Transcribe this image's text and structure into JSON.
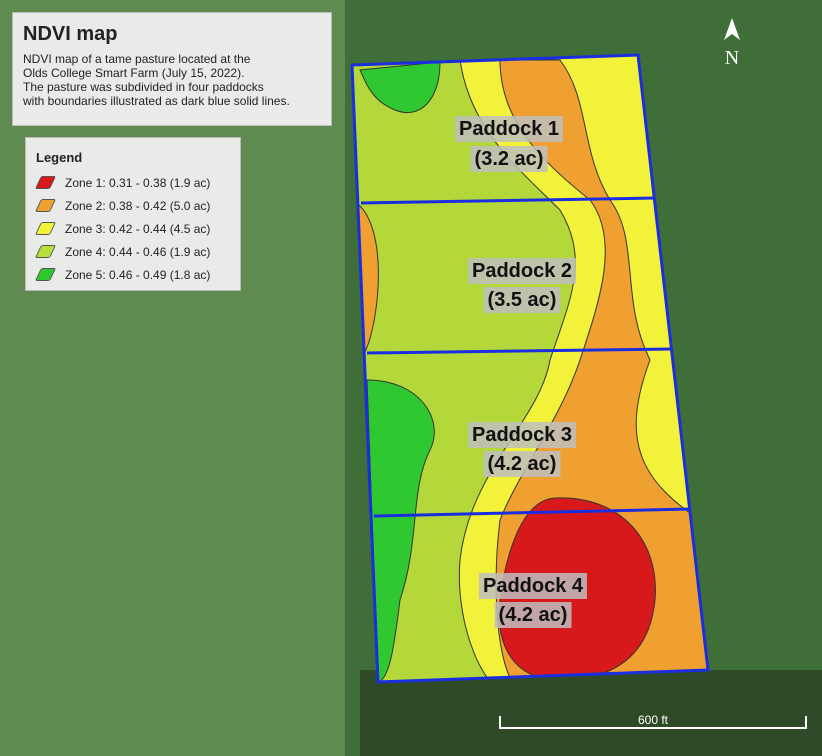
{
  "header": {
    "title": "NDVI map",
    "description": [
      "NDVI map of a tame pasture located at the",
      "Olds College Smart Farm (July 15, 2022).",
      "The pasture was subdivided in four paddocks",
      "with boundaries illustrated as dark blue solid lines."
    ]
  },
  "legend": {
    "title": "Legend",
    "items": [
      {
        "label": "Zone 1: 0.31 - 0.38 (1.9 ac)",
        "color": "#d7191c"
      },
      {
        "label": "Zone 2: 0.38 - 0.42 (5.0 ac)",
        "color": "#f0a030"
      },
      {
        "label": "Zone 3: 0.42 - 0.44 (4.5 ac)",
        "color": "#f2f23a"
      },
      {
        "label": "Zone 4: 0.44 - 0.46 (1.9 ac)",
        "color": "#b4e03a"
      },
      {
        "label": "Zone 5: 0.46 - 0.49 (1.8 ac)",
        "color": "#30c830"
      }
    ]
  },
  "paddocks": [
    {
      "name": "Paddock 1",
      "area": "(3.2 ac)"
    },
    {
      "name": "Paddock 2",
      "area": "(3.5 ac)"
    },
    {
      "name": "Paddock 3",
      "area": "(4.2 ac)"
    },
    {
      "name": "Paddock 4",
      "area": "(4.2 ac)"
    }
  ],
  "north": "N",
  "scale": "600 ft"
}
